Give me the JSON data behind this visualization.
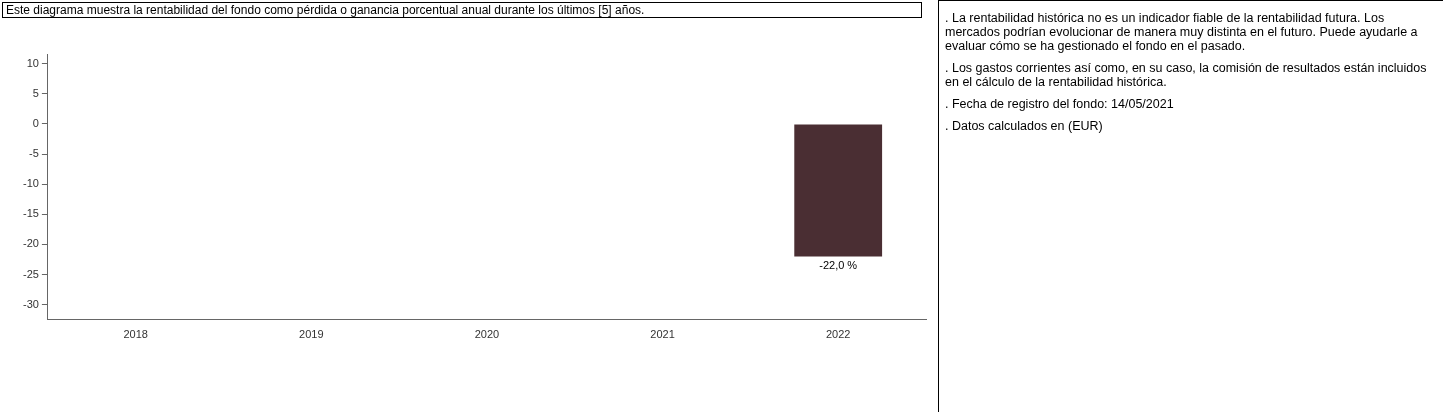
{
  "chart_data": {
    "type": "bar",
    "title": "Este diagrama muestra la rentabilidad del fondo como pérdida o ganancia porcentual anual durante los últimos [5] años.",
    "categories": [
      "2018",
      "2019",
      "2020",
      "2021",
      "2022"
    ],
    "series": [
      {
        "color": "#4a2e33",
        "values": [
          null,
          null,
          null,
          null,
          -22.0
        ],
        "value_labels": [
          null,
          null,
          null,
          null,
          "-22,0 %"
        ]
      }
    ],
    "ylim": [
      -32.5,
      11.5
    ],
    "yticks": [
      10,
      5,
      0,
      -5,
      -10,
      -15,
      -20,
      -25,
      -30
    ],
    "grid": false,
    "legend": false,
    "annotations": [
      ". La rentabilidad histórica no es un indicador fiable de la rentabilidad futura. Los mercados podrían evolucionar de manera muy distinta en el futuro. Puede ayudarle a evaluar cómo se ha gestionado el fondo en el pasado.",
      ". Los gastos corrientes así como, en su caso, la comisión de resultados están incluidos en el cálculo de la rentabilidad histórica.",
      ". Fecha de registro del fondo: 14/05/2021",
      ". Datos calculados en (EUR)"
    ]
  }
}
